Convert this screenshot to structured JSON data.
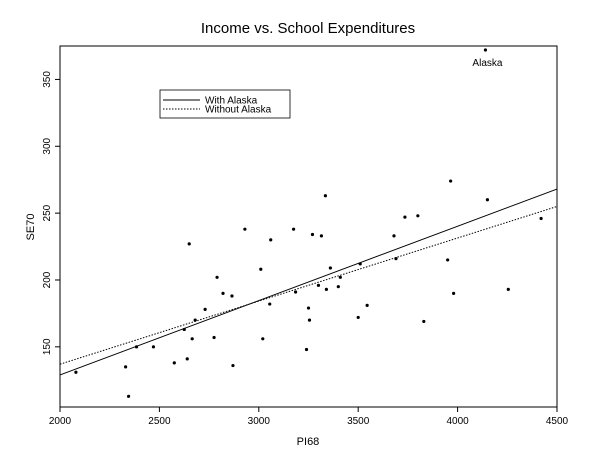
{
  "chart_data": {
    "type": "scatter",
    "title": "Income vs. School Expenditures",
    "xlabel": "PI68",
    "ylabel": "SE70",
    "xlim": [
      2000,
      4500
    ],
    "ylim": [
      105,
      375
    ],
    "xticks": [
      2000,
      2500,
      3000,
      3500,
      4000,
      4500
    ],
    "yticks": [
      150,
      200,
      250,
      300,
      350
    ],
    "grid": false,
    "legend_position": "upper-left",
    "points": [
      [
        2080,
        131
      ],
      [
        2330,
        135
      ],
      [
        2345,
        113
      ],
      [
        2385,
        150
      ],
      [
        2470,
        150
      ],
      [
        2575,
        138
      ],
      [
        2625,
        163
      ],
      [
        2640,
        141
      ],
      [
        2650,
        227
      ],
      [
        2665,
        156
      ],
      [
        2680,
        170
      ],
      [
        2730,
        178
      ],
      [
        2775,
        157
      ],
      [
        2790,
        202
      ],
      [
        2820,
        190
      ],
      [
        2865,
        188
      ],
      [
        2870,
        136
      ],
      [
        2930,
        238
      ],
      [
        3010,
        208
      ],
      [
        3020,
        156
      ],
      [
        3055,
        182
      ],
      [
        3060,
        230
      ],
      [
        3175,
        238
      ],
      [
        3185,
        191
      ],
      [
        3240,
        148
      ],
      [
        3250,
        179
      ],
      [
        3255,
        170
      ],
      [
        3270,
        234
      ],
      [
        3300,
        196
      ],
      [
        3315,
        233
      ],
      [
        3335,
        263
      ],
      [
        3340,
        193
      ],
      [
        3360,
        209
      ],
      [
        3400,
        195
      ],
      [
        3410,
        202
      ],
      [
        3500,
        172
      ],
      [
        3510,
        212
      ],
      [
        3545,
        181
      ],
      [
        3680,
        233
      ],
      [
        3690,
        216
      ],
      [
        3735,
        247
      ],
      [
        3800,
        248
      ],
      [
        3830,
        169
      ],
      [
        3950,
        215
      ],
      [
        3965,
        274
      ],
      [
        3980,
        190
      ],
      [
        4140,
        372
      ],
      [
        4150,
        260
      ],
      [
        4255,
        193
      ],
      [
        4420,
        246
      ]
    ],
    "series": [
      {
        "name": "With Alaska",
        "type": "line",
        "style": "solid",
        "x": [
          2000,
          4500
        ],
        "y": [
          129,
          268
        ]
      },
      {
        "name": "Without Alaska",
        "type": "line",
        "style": "dotted",
        "x": [
          2000,
          4500
        ],
        "y": [
          137,
          255
        ]
      }
    ],
    "annotations": [
      {
        "text": "Alaska",
        "x": 4140,
        "y": 372
      }
    ]
  }
}
